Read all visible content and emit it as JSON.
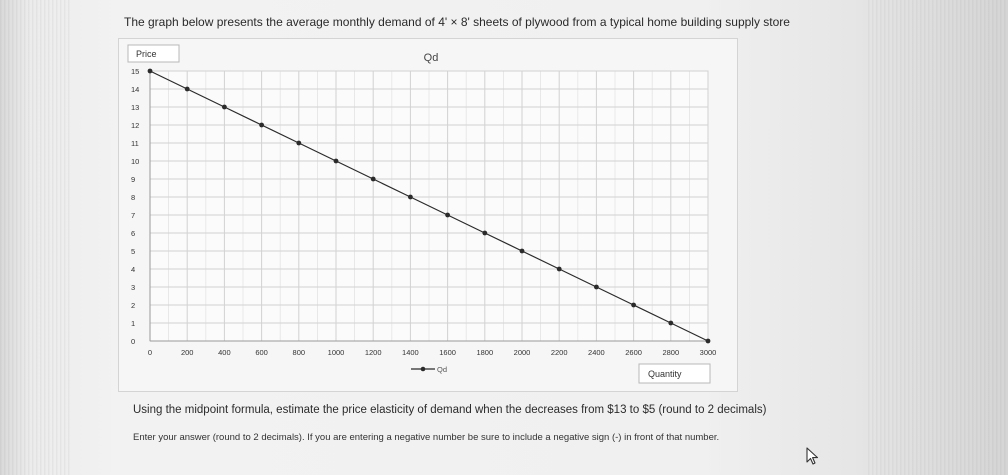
{
  "question": {
    "title": "The graph below presents the average monthly demand of 4' × 8' sheets of plywood from a typical home building supply store",
    "prompt": "Using the midpoint formula, estimate the price elasticity of demand when the decreases from $13 to $5 (round to 2 decimals)",
    "instruction": "Enter your answer (round to 2 decimals). If you are entering a negative number be sure to include a negative sign (-) in front of that number."
  },
  "chart_data": {
    "type": "line",
    "title": "Qd",
    "ylabel": "Price",
    "xlabel": "Quantity",
    "xlim": [
      0,
      3000
    ],
    "ylim": [
      0,
      15
    ],
    "x_ticks": [
      "0",
      "200",
      "400",
      "600",
      "800",
      "1000",
      "1200",
      "1400",
      "1600",
      "1800",
      "2000",
      "2200",
      "2400",
      "2600",
      "2800",
      "3000"
    ],
    "y_ticks": [
      "0",
      "1",
      "2",
      "3",
      "4",
      "5",
      "6",
      "7",
      "8",
      "9",
      "10",
      "11",
      "12",
      "13",
      "14",
      "15"
    ],
    "grid": true,
    "legend_position": "bottom",
    "series": [
      {
        "name": "Qd",
        "color": "#2b2b2b",
        "points": [
          {
            "x": 0,
            "y": 15
          },
          {
            "x": 200,
            "y": 14
          },
          {
            "x": 400,
            "y": 13
          },
          {
            "x": 600,
            "y": 12
          },
          {
            "x": 800,
            "y": 11
          },
          {
            "x": 1000,
            "y": 10
          },
          {
            "x": 1200,
            "y": 9
          },
          {
            "x": 1400,
            "y": 8
          },
          {
            "x": 1600,
            "y": 7
          },
          {
            "x": 1800,
            "y": 6
          },
          {
            "x": 2000,
            "y": 5
          },
          {
            "x": 2200,
            "y": 4
          },
          {
            "x": 2400,
            "y": 3
          },
          {
            "x": 2600,
            "y": 2
          },
          {
            "x": 2800,
            "y": 1
          },
          {
            "x": 3000,
            "y": 0
          }
        ]
      }
    ]
  },
  "icons": {
    "cursor": "mouse-pointer-icon"
  }
}
